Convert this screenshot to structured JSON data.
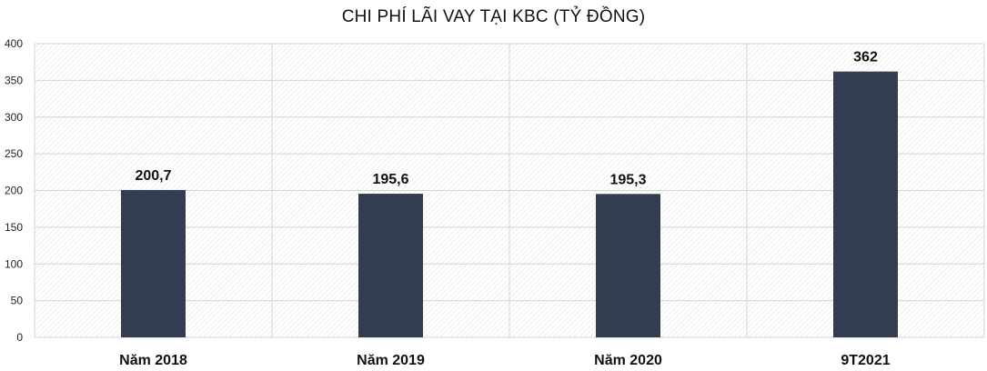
{
  "chart_data": {
    "type": "bar",
    "title": "CHI PHÍ LÃI VAY TẠI KBC (TỶ ĐỒNG)",
    "categories": [
      "Năm 2018",
      "Năm 2019",
      "Năm 2020",
      "9T2021"
    ],
    "values": [
      200.7,
      195.6,
      195.3,
      362
    ],
    "data_labels": [
      "200,7",
      "195,6",
      "195,3",
      "362"
    ],
    "y_ticks": [
      "0",
      "50",
      "100",
      "150",
      "200",
      "250",
      "300",
      "350",
      "400"
    ],
    "ylim": [
      0,
      400
    ],
    "xlabel": "",
    "ylabel": "",
    "grid": true,
    "legend": "none",
    "colors": {
      "bar": "#323d51",
      "grid": "#d4d4d4",
      "hatch": "#e3e3e3"
    }
  }
}
